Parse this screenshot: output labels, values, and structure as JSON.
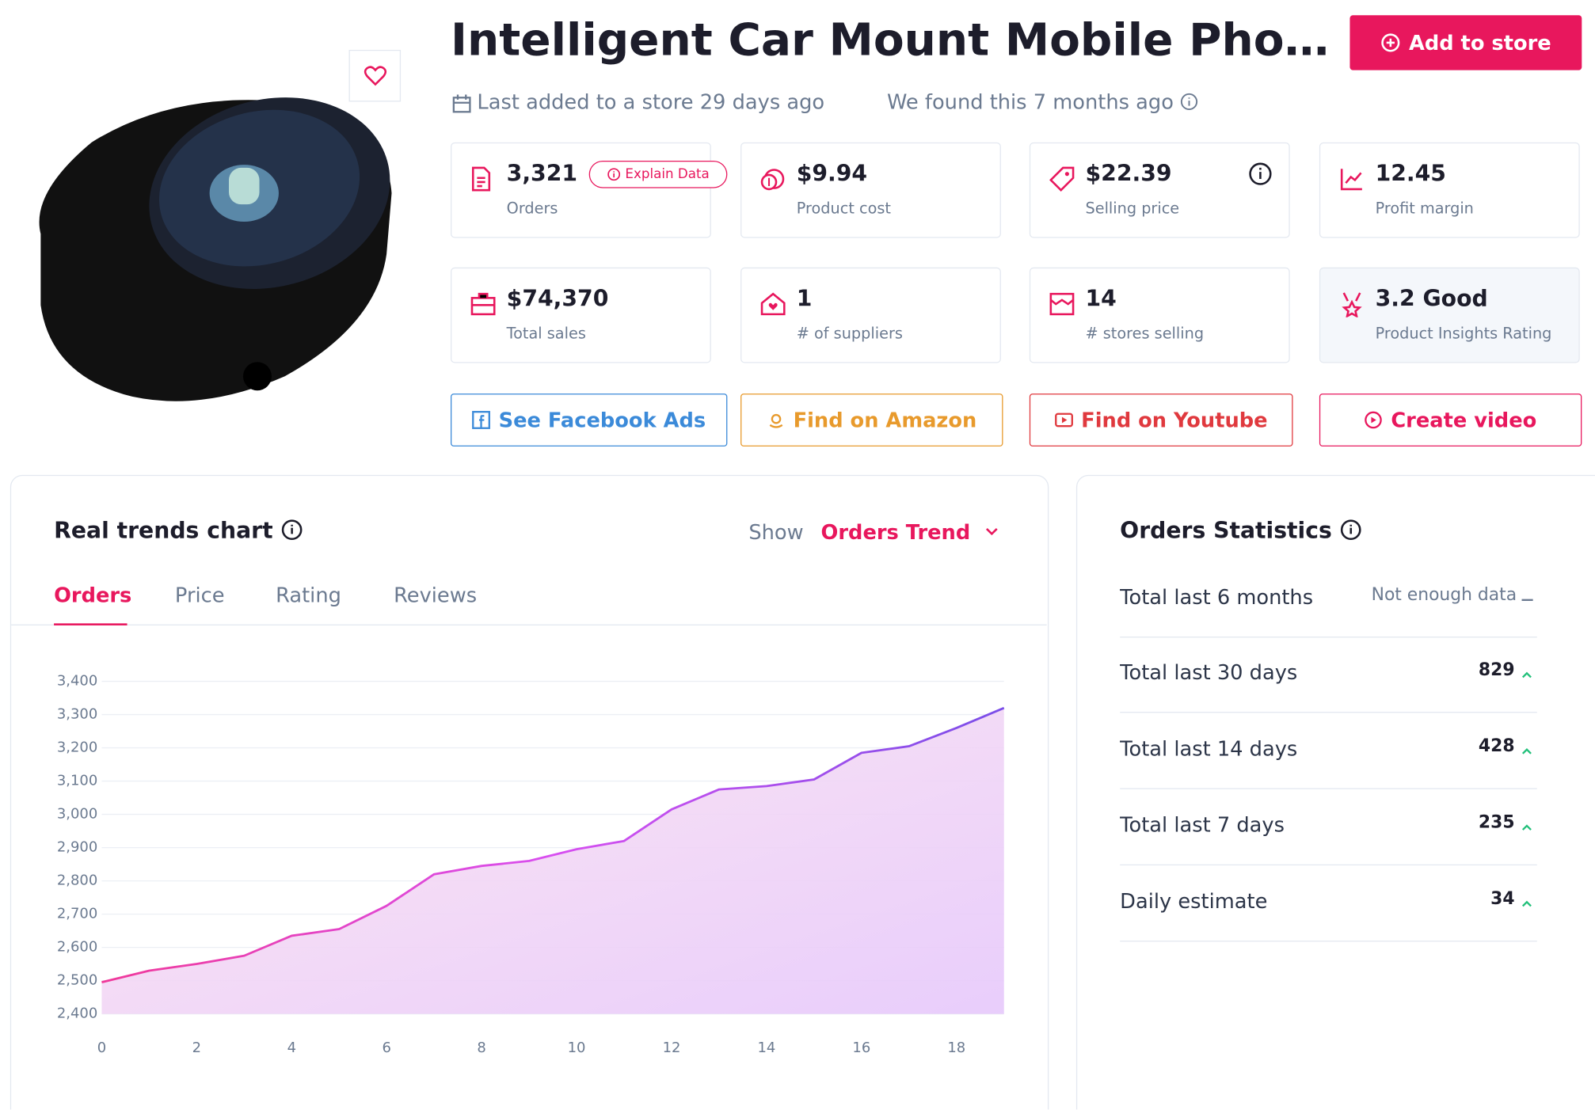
{
  "product": {
    "title": "Intelligent Car Mount Mobile Pho…",
    "add_button": "Add to store",
    "last_added": "Last added to a store 29 days ago",
    "found": "We found this 7 months ago"
  },
  "metrics": [
    {
      "value": "3,321",
      "label": "Orders"
    },
    {
      "value": "$9.94",
      "label": "Product cost"
    },
    {
      "value": "$22.39",
      "label": "Selling price"
    },
    {
      "value": "12.45",
      "label": "Profit margin"
    },
    {
      "value": "$74,370",
      "label": "Total sales"
    },
    {
      "value": "1",
      "label": "# of suppliers"
    },
    {
      "value": "14",
      "label": "# stores selling"
    },
    {
      "value": "3.2 Good",
      "label": "Product Insights Rating"
    }
  ],
  "explain_button": "Explain Data",
  "actions": [
    "See Facebook Ads",
    "Find on Amazon",
    "Find on Youtube",
    "Create video"
  ],
  "trends": {
    "title": "Real trends chart",
    "show_label": "Show",
    "show_value": "Orders Trend",
    "tabs": [
      "Orders",
      "Price",
      "Rating",
      "Reviews"
    ]
  },
  "chart_data": {
    "type": "line",
    "x": [
      0,
      1,
      2,
      3,
      4,
      5,
      6,
      7,
      8,
      9,
      10,
      11,
      12,
      13,
      14,
      15,
      16,
      17,
      18,
      19
    ],
    "series": [
      {
        "name": "Orders",
        "color": "#e83ec8",
        "values": [
          2495,
          2530,
          2550,
          2575,
          2635,
          2655,
          2725,
          2820,
          2845,
          2860,
          2895,
          2920,
          3015,
          3075,
          3085,
          3105,
          3185,
          3205,
          3260,
          3320
        ]
      }
    ],
    "xlim": [
      0,
      19
    ],
    "xticks": [
      0,
      2,
      4,
      6,
      8,
      10,
      12,
      14,
      16,
      18
    ],
    "ylim": [
      2400,
      3400
    ],
    "yticks": [
      {
        "value": 2400,
        "label": "2,400"
      },
      {
        "value": 2500,
        "label": "2,500"
      },
      {
        "value": 2600,
        "label": "2,600"
      },
      {
        "value": 2700,
        "label": "2,700"
      },
      {
        "value": 2800,
        "label": "2,800"
      },
      {
        "value": 2900,
        "label": "2,900"
      },
      {
        "value": 3000,
        "label": "3,000"
      },
      {
        "value": 3100,
        "label": "3,100"
      },
      {
        "value": 3200,
        "label": "3,200"
      },
      {
        "value": 3300,
        "label": "3,300"
      },
      {
        "value": 3400,
        "label": "3,400"
      }
    ],
    "grid": true
  },
  "statistics": {
    "title": "Orders Statistics",
    "rows": [
      {
        "label": "Total last 6 months",
        "value": "Not enough data"
      },
      {
        "label": "Total last 30 days",
        "value": 829
      },
      {
        "label": "Total last 14 days",
        "value": 428
      },
      {
        "label": "Total last 7 days",
        "value": 235
      },
      {
        "label": "Daily estimate",
        "value": 34
      }
    ]
  }
}
